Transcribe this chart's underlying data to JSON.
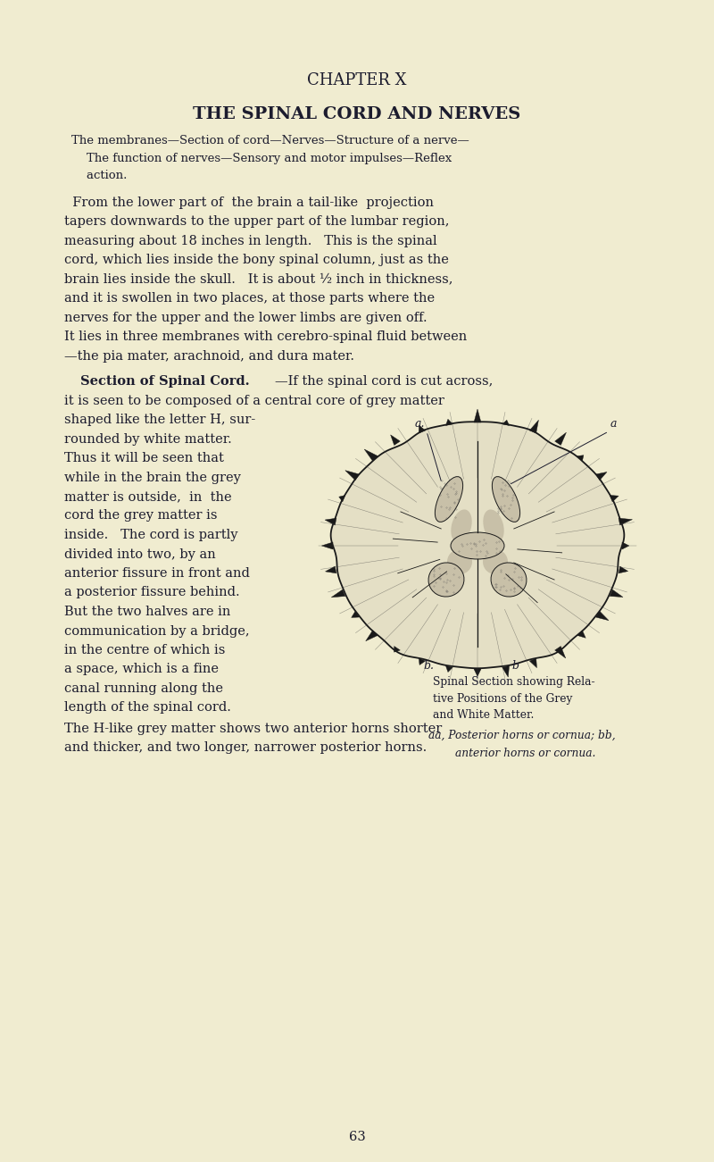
{
  "bg_color": "#f0ecd0",
  "text_color": "#1c1c2e",
  "page_width": 8.0,
  "page_height": 13.01,
  "chapter_title": "CHAPTER X",
  "section_title": "THE SPINAL CORD AND NERVES",
  "page_num": "63"
}
